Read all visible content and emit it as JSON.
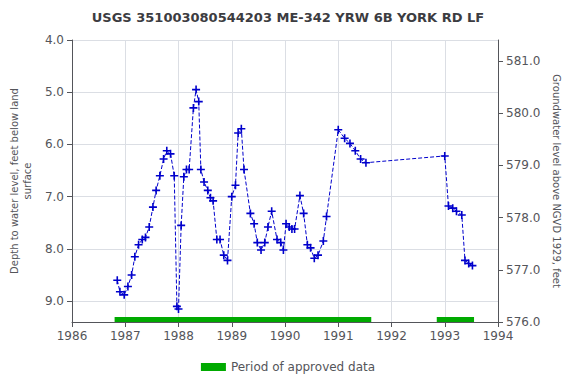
{
  "chart_data": {
    "type": "line",
    "title": "USGS 351003080544203 ME-342 YRW 6B YORK RD LF",
    "ylabel": "Depth to water level, feet below land\nsurface",
    "y2label": "Groundwater level above NGVD 1929, feet",
    "x": [
      1986.85,
      1986.9,
      1986.98,
      1987.05,
      1987.12,
      1987.18,
      1987.25,
      1987.32,
      1987.38,
      1987.45,
      1987.52,
      1987.58,
      1987.65,
      1987.72,
      1987.78,
      1987.85,
      1987.92,
      1987.97,
      1988.0,
      1988.05,
      1988.1,
      1988.15,
      1988.2,
      1988.28,
      1988.33,
      1988.38,
      1988.42,
      1988.48,
      1988.55,
      1988.6,
      1988.65,
      1988.72,
      1988.78,
      1988.85,
      1988.92,
      1989.0,
      1989.07,
      1989.12,
      1989.18,
      1989.23,
      1989.35,
      1989.42,
      1989.48,
      1989.55,
      1989.62,
      1989.68,
      1989.75,
      1989.85,
      1989.92,
      1989.97,
      1990.02,
      1990.08,
      1990.13,
      1990.18,
      1990.28,
      1990.35,
      1990.42,
      1990.48,
      1990.55,
      1990.62,
      1990.72,
      1990.78,
      1991.0,
      1991.12,
      1991.22,
      1991.32,
      1991.42,
      1991.52,
      1993.0,
      1993.07,
      1993.15,
      1993.22,
      1993.32,
      1993.38,
      1993.45,
      1993.52
    ],
    "values": [
      8.6,
      8.82,
      8.88,
      8.72,
      8.5,
      8.15,
      7.92,
      7.82,
      7.78,
      7.58,
      7.2,
      6.88,
      6.6,
      6.28,
      6.12,
      6.18,
      6.6,
      9.1,
      9.15,
      7.55,
      6.62,
      6.48,
      6.48,
      5.3,
      4.95,
      5.18,
      6.48,
      6.72,
      6.88,
      7.02,
      7.08,
      7.82,
      7.82,
      8.12,
      8.22,
      7.0,
      6.78,
      5.78,
      5.7,
      6.48,
      7.32,
      7.52,
      7.88,
      8.02,
      7.88,
      7.58,
      7.28,
      7.82,
      7.88,
      8.02,
      7.52,
      7.58,
      7.62,
      7.62,
      6.98,
      7.32,
      7.92,
      7.98,
      8.18,
      8.12,
      7.85,
      7.38,
      5.72,
      5.88,
      5.98,
      6.12,
      6.28,
      6.35,
      6.22,
      7.18,
      7.22,
      7.28,
      7.35,
      8.22,
      8.28,
      8.32
    ],
    "color": "#0000cc",
    "line_style": "dashed",
    "marker": "+",
    "xlim": [
      1986,
      1994
    ],
    "xticks": [
      1986,
      1987,
      1988,
      1989,
      1990,
      1991,
      1992,
      1993,
      1994
    ],
    "ylim": [
      9.4,
      4.0
    ],
    "yticks": [
      {
        "value": 4.0,
        "label": "4.0"
      },
      {
        "value": 5.0,
        "label": "5.0"
      },
      {
        "value": 6.0,
        "label": "6.0"
      },
      {
        "value": 7.0,
        "label": "7.0"
      },
      {
        "value": 8.0,
        "label": "8.0"
      },
      {
        "value": 9.0,
        "label": "9.0"
      }
    ],
    "y2lim": [
      576.0,
      581.4
    ],
    "y2ticks": [
      {
        "value": 576.0,
        "label": "576.0"
      },
      {
        "value": 577.0,
        "label": "577.0"
      },
      {
        "value": 578.0,
        "label": "578.0"
      },
      {
        "value": 579.0,
        "label": "579.0"
      },
      {
        "value": 580.0,
        "label": "580.0"
      },
      {
        "value": 581.0,
        "label": "581.0"
      }
    ],
    "grid": true,
    "legend": "bottom",
    "approved_periods": {
      "name": "Period of approved data",
      "color": "#00aa00",
      "ranges": [
        [
          1986.8,
          1991.62
        ],
        [
          1992.85,
          1993.55
        ]
      ]
    }
  }
}
